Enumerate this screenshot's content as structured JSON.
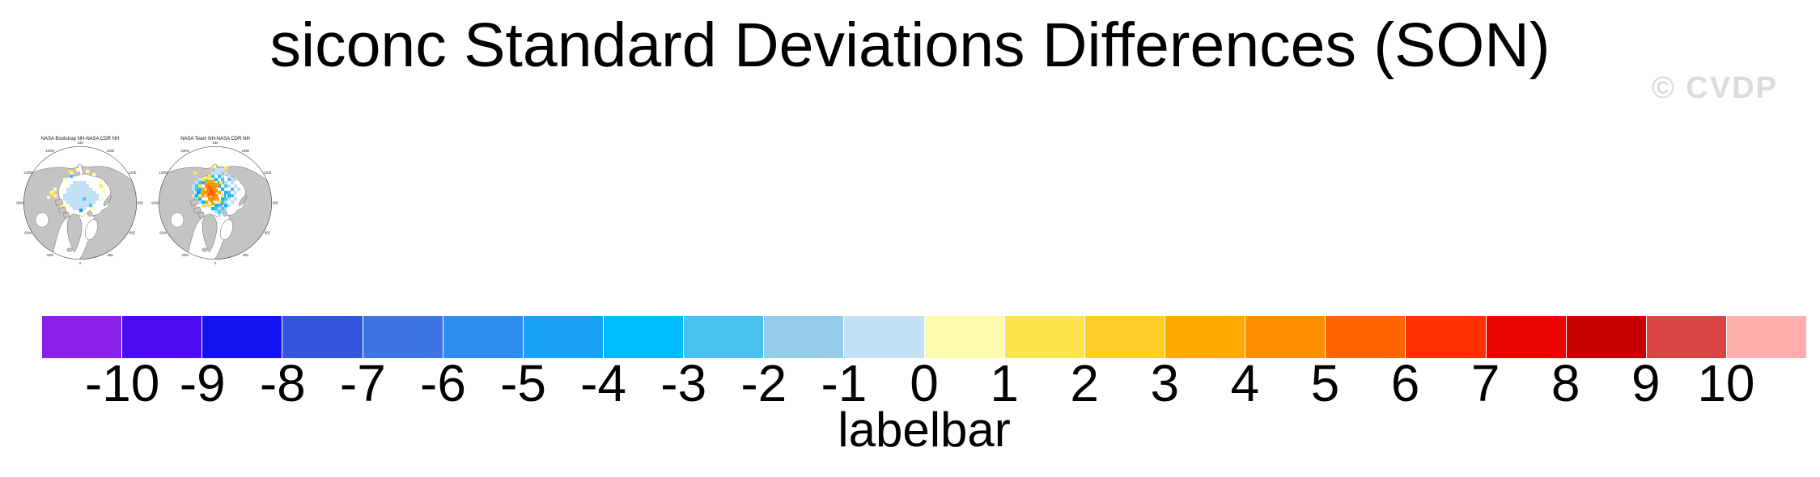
{
  "title": "siconc Standard Deviations Differences (SON)",
  "watermark": "© CVDP",
  "panels": [
    {
      "title": "NASA Bootstrap NH-NASA CDR NH"
    },
    {
      "title": "NASA Team NH-NASA CDR NH"
    }
  ],
  "map_lon_labels": [
    {
      "label": "180",
      "angle": 0
    },
    {
      "label": "150E",
      "angle": 30
    },
    {
      "label": "120E",
      "angle": 60
    },
    {
      "label": "90E",
      "angle": 90
    },
    {
      "label": "60E",
      "angle": 120
    },
    {
      "label": "30E",
      "angle": 150
    },
    {
      "label": "0",
      "angle": 180
    },
    {
      "label": "30W",
      "angle": 210
    },
    {
      "label": "60W",
      "angle": 240
    },
    {
      "label": "90W",
      "angle": 270
    },
    {
      "label": "120W",
      "angle": 300
    },
    {
      "label": "150W",
      "angle": 330
    }
  ],
  "colorbar": {
    "label": "labelbar",
    "ticks": [
      "-10",
      "-9",
      "-8",
      "-7",
      "-6",
      "-5",
      "-4",
      "-3",
      "-2",
      "-1",
      "0",
      "1",
      "2",
      "3",
      "4",
      "5",
      "6",
      "7",
      "8",
      "9",
      "10"
    ],
    "colors": [
      "#8B21E8",
      "#4A0CEE",
      "#1414EE",
      "#3355DC",
      "#3D74E4",
      "#2B8DEF",
      "#17A2F7",
      "#00BCFF",
      "#49C2F0",
      "#94CCE9",
      "#C3E1F5",
      "#FFFBAE",
      "#FFE44D",
      "#FFCE29",
      "#FFA800",
      "#FF8E00",
      "#FF6600",
      "#FF3000",
      "#EA0500",
      "#C90000",
      "#D94545",
      "#FFADAD"
    ]
  },
  "chart_data": {
    "type": "heatmap",
    "title": "siconc Standard Deviations Differences (SON)",
    "variable": "siconc",
    "season": "SON",
    "panels": [
      {
        "title": "NASA Bootstrap NH-NASA CDR NH",
        "projection": "north polar stereographic",
        "summary": "Central Arctic mostly -1 to 0 (pale blue) with scattered 0 to 1 (pale yellow) patches along the Siberian/Alaskan coasts, Canadian Archipelago and Baffin region; a few isolated stronger blue cells."
      },
      {
        "title": "NASA Team NH-NASA CDR NH",
        "projection": "north polar stereographic",
        "summary": "Central Arctic mottled -4 to 0 (blues) with a strong 3 to 6 (orange) core near the pole toward the East Siberian side, ringed by 1 to 3 (yellow/gold) cells; weak blue patches extend toward Barents/Kara seas."
      }
    ],
    "colorbar_label": "labelbar",
    "levels": [
      -10,
      -9,
      -8,
      -7,
      -6,
      -5,
      -4,
      -3,
      -2,
      -1,
      0,
      1,
      2,
      3,
      4,
      5,
      6,
      7,
      8,
      9,
      10
    ],
    "palette": [
      "#8B21E8",
      "#4A0CEE",
      "#1414EE",
      "#3355DC",
      "#3D74E4",
      "#2B8DEF",
      "#17A2F7",
      "#00BCFF",
      "#49C2F0",
      "#94CCE9",
      "#C3E1F5",
      "#FFFBAE",
      "#FFE44D",
      "#FFCE29",
      "#FFA800",
      "#FF8E00",
      "#FF6600",
      "#FF3000",
      "#EA0500",
      "#C90000",
      "#D94545",
      "#FFADAD"
    ]
  }
}
